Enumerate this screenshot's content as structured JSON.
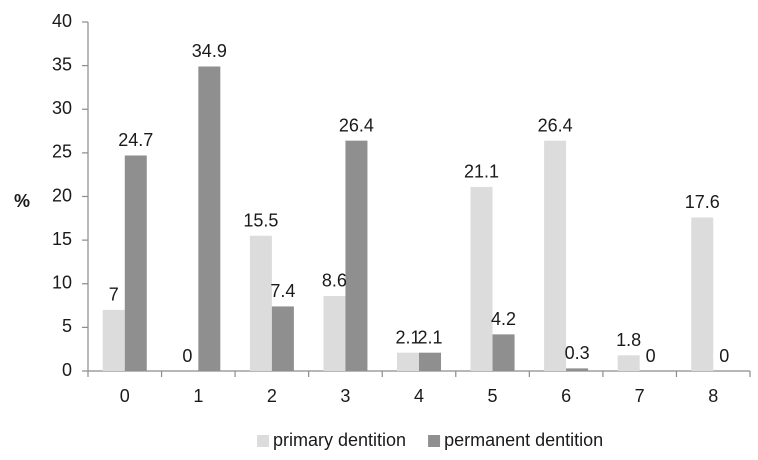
{
  "chart_data": {
    "type": "bar",
    "categories": [
      "0",
      "1",
      "2",
      "3",
      "4",
      "5",
      "6",
      "7",
      "8"
    ],
    "series": [
      {
        "name": "primary dentition",
        "values": [
          7,
          0,
          15.5,
          8.6,
          2.1,
          21.1,
          26.4,
          1.8,
          17.6
        ],
        "labels": [
          "7",
          "0",
          "15.5",
          "8.6",
          "2.1",
          "21.1",
          "26.4",
          "1.8",
          "17.6"
        ],
        "color": "#dcdcdc"
      },
      {
        "name": "permanent dentition",
        "values": [
          24.7,
          34.9,
          7.4,
          26.4,
          2.1,
          4.2,
          0.3,
          0,
          0
        ],
        "labels": [
          "24.7",
          "34.9",
          "7.4",
          "26.4",
          "2.1",
          "4.2",
          "0.3",
          "0",
          "0"
        ],
        "color": "#8f8f8f"
      }
    ],
    "ylabel": "%",
    "xlabel": "",
    "ylim": [
      0,
      40
    ],
    "yticks": [
      "0",
      "5",
      "10",
      "15",
      "20",
      "25",
      "30",
      "35",
      "40"
    ],
    "grid": false,
    "legend": "bottom"
  }
}
